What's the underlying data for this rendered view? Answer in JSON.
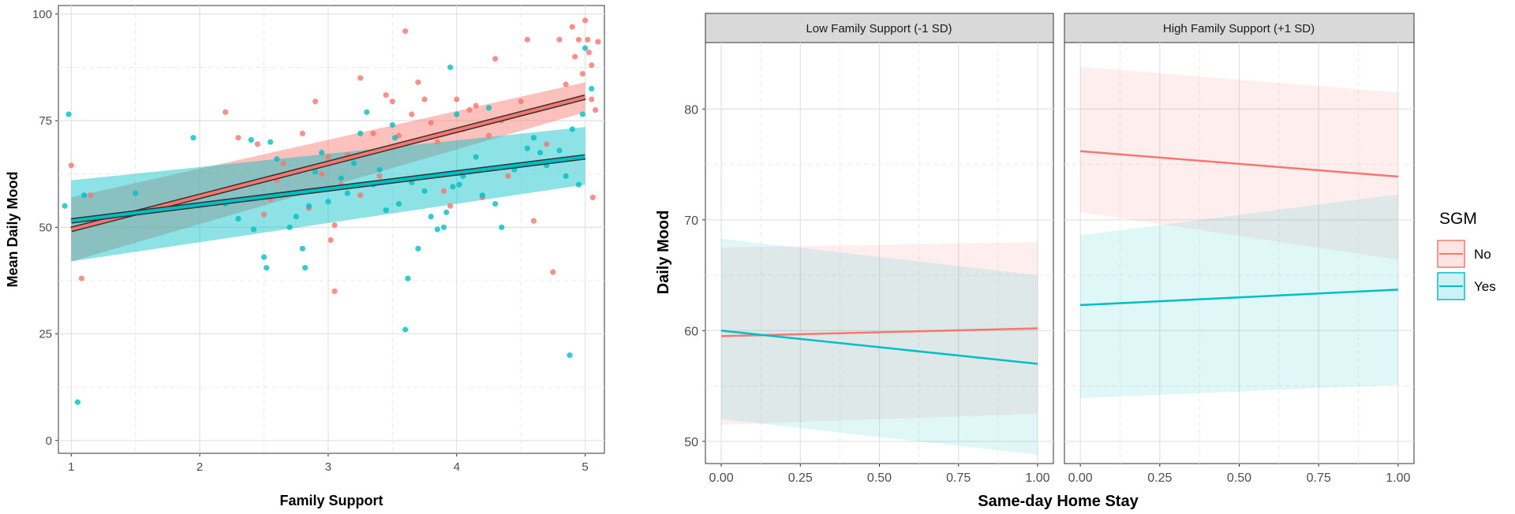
{
  "colors": {
    "no": "#F8766D",
    "yes": "#00BFC4"
  },
  "chart_data": [
    {
      "type": "scatter",
      "title": "",
      "xlabel": "Family Support",
      "ylabel": "Mean Daily Mood",
      "xlim": [
        0.9,
        5.15
      ],
      "ylim": [
        -3,
        102
      ],
      "xticks": [
        1,
        2,
        3,
        4,
        5
      ],
      "yticks": [
        0,
        25,
        50,
        75,
        100
      ],
      "grid": true,
      "legend": "none",
      "series": [
        {
          "group": "No",
          "color": "#F8766D",
          "points": [
            [
              1,
              64.5
            ],
            [
              1.08,
              38
            ],
            [
              1.15,
              57.5
            ],
            [
              2.2,
              77
            ],
            [
              2.3,
              71
            ],
            [
              2.45,
              69.5
            ],
            [
              2.5,
              53
            ],
            [
              2.55,
              56.5
            ],
            [
              2.6,
              61
            ],
            [
              2.65,
              65
            ],
            [
              2.75,
              58
            ],
            [
              2.8,
              72
            ],
            [
              2.85,
              54.5
            ],
            [
              2.9,
              79.5
            ],
            [
              2.95,
              62.5
            ],
            [
              3.0,
              66.5
            ],
            [
              3.02,
              47
            ],
            [
              3.05,
              50.5
            ],
            [
              3.05,
              35
            ],
            [
              3.1,
              60
            ],
            [
              3.15,
              67
            ],
            [
              3.25,
              57.5
            ],
            [
              3.25,
              85
            ],
            [
              3.35,
              72
            ],
            [
              3.4,
              62
            ],
            [
              3.45,
              81
            ],
            [
              3.5,
              79.5
            ],
            [
              3.55,
              71.5
            ],
            [
              3.6,
              96
            ],
            [
              3.65,
              76.5
            ],
            [
              3.7,
              84
            ],
            [
              3.75,
              80
            ],
            [
              3.8,
              74.5
            ],
            [
              3.85,
              70
            ],
            [
              3.9,
              58.5
            ],
            [
              3.95,
              55
            ],
            [
              4.0,
              80
            ],
            [
              4.05,
              73
            ],
            [
              4.1,
              77.5
            ],
            [
              4.15,
              78.5
            ],
            [
              4.2,
              57
            ],
            [
              4.25,
              71.5
            ],
            [
              4.3,
              89.5
            ],
            [
              4.35,
              75
            ],
            [
              4.4,
              62
            ],
            [
              4.5,
              79.5
            ],
            [
              4.55,
              94
            ],
            [
              4.6,
              51.5
            ],
            [
              4.7,
              69.5
            ],
            [
              4.75,
              39.5
            ],
            [
              4.8,
              94
            ],
            [
              4.85,
              83.5
            ],
            [
              4.9,
              97
            ],
            [
              4.92,
              90
            ],
            [
              4.95,
              94
            ],
            [
              4.98,
              86
            ],
            [
              5.0,
              98.5
            ],
            [
              5.02,
              94
            ],
            [
              5.03,
              91
            ],
            [
              5.05,
              88
            ],
            [
              5.05,
              80
            ],
            [
              5.06,
              57
            ],
            [
              5.08,
              77.5
            ],
            [
              5.1,
              93.5
            ]
          ]
        },
        {
          "group": "Yes",
          "color": "#00BFC4",
          "points": [
            [
              0.95,
              55
            ],
            [
              0.98,
              76.5
            ],
            [
              1.05,
              9
            ],
            [
              1.1,
              57.5
            ],
            [
              1.5,
              58
            ],
            [
              1.95,
              71
            ],
            [
              2.2,
              55.5
            ],
            [
              2.3,
              52
            ],
            [
              2.4,
              70.5
            ],
            [
              2.42,
              49.5
            ],
            [
              2.5,
              43
            ],
            [
              2.52,
              40.5
            ],
            [
              2.55,
              70
            ],
            [
              2.6,
              66
            ],
            [
              2.7,
              50
            ],
            [
              2.75,
              52.5
            ],
            [
              2.8,
              45
            ],
            [
              2.82,
              40.5
            ],
            [
              2.85,
              55
            ],
            [
              2.9,
              63
            ],
            [
              2.95,
              67.5
            ],
            [
              3.0,
              56
            ],
            [
              3.1,
              61.5
            ],
            [
              3.15,
              58
            ],
            [
              3.2,
              65
            ],
            [
              3.25,
              72
            ],
            [
              3.3,
              77
            ],
            [
              3.35,
              60
            ],
            [
              3.4,
              63.5
            ],
            [
              3.45,
              54
            ],
            [
              3.5,
              74
            ],
            [
              3.52,
              71
            ],
            [
              3.55,
              55.5
            ],
            [
              3.6,
              26
            ],
            [
              3.62,
              38
            ],
            [
              3.65,
              60.5
            ],
            [
              3.7,
              45
            ],
            [
              3.75,
              58.5
            ],
            [
              3.8,
              52.5
            ],
            [
              3.85,
              49.5
            ],
            [
              3.9,
              50
            ],
            [
              3.92,
              53.5
            ],
            [
              3.95,
              87.5
            ],
            [
              3.97,
              59.5
            ],
            [
              4.0,
              76.5
            ],
            [
              4.02,
              60
            ],
            [
              4.05,
              62
            ],
            [
              4.1,
              63
            ],
            [
              4.15,
              66.5
            ],
            [
              4.2,
              57.5
            ],
            [
              4.25,
              78
            ],
            [
              4.3,
              55.5
            ],
            [
              4.35,
              50
            ],
            [
              4.45,
              63.5
            ],
            [
              4.55,
              68.5
            ],
            [
              4.6,
              71
            ],
            [
              4.65,
              67.5
            ],
            [
              4.7,
              64.5
            ],
            [
              4.8,
              68
            ],
            [
              4.85,
              62
            ],
            [
              4.88,
              20
            ],
            [
              4.9,
              73
            ],
            [
              4.95,
              60
            ],
            [
              4.98,
              76.5
            ],
            [
              5.0,
              92
            ],
            [
              5.05,
              82.5
            ]
          ]
        }
      ],
      "fits": [
        {
          "group": "No",
          "color": "#F8766D",
          "x": [
            1,
            5
          ],
          "y": [
            49.5,
            80.5
          ],
          "ci_lower": [
            41.5,
            77.5
          ],
          "ci_upper": [
            57.5,
            83.5
          ],
          "ci_band_lower": [
            42,
            77
          ],
          "ci_band_upper": [
            57,
            84
          ]
        },
        {
          "group": "Yes",
          "color": "#00BFC4",
          "x": [
            1,
            5
          ],
          "y": [
            51.5,
            66.5
          ],
          "ci_lower": [
            42,
            60
          ],
          "ci_upper": [
            61,
            73.5
          ],
          "ci_band_lower": [
            42,
            60
          ],
          "ci_band_upper": [
            61,
            73.5
          ]
        }
      ]
    },
    {
      "type": "line",
      "title": "",
      "xlabel": "Same-day Home Stay",
      "ylabel": "Daily Mood",
      "xlim": [
        -0.05,
        1.05
      ],
      "ylim": [
        48,
        86
      ],
      "xticks": [
        "0.00",
        "0.25",
        "0.50",
        "0.75",
        "1.00"
      ],
      "yticks": [
        50,
        60,
        70,
        80
      ],
      "grid": true,
      "legend": "right",
      "legend_title": "SGM",
      "legend_entries": [
        "No",
        "Yes"
      ],
      "facets": [
        {
          "label": "Low Family Support (-1 SD)",
          "series": [
            {
              "name": "No",
              "color": "#F8766D",
              "x": [
                0,
                1
              ],
              "y": [
                59.5,
                60.2
              ],
              "lower": [
                51.5,
                52.5
              ],
              "upper": [
                67.5,
                68
              ]
            },
            {
              "name": "Yes",
              "color": "#00BFC4",
              "x": [
                0,
                1
              ],
              "y": [
                60.0,
                57.0
              ],
              "lower": [
                52,
                48.8
              ],
              "upper": [
                68.3,
                65
              ]
            }
          ]
        },
        {
          "label": "High Family Support (+1 SD)",
          "series": [
            {
              "name": "No",
              "color": "#F8766D",
              "x": [
                0,
                1
              ],
              "y": [
                76.2,
                73.9
              ],
              "lower": [
                70.7,
                66.4
              ],
              "upper": [
                83.8,
                81.5
              ]
            },
            {
              "name": "Yes",
              "color": "#00BFC4",
              "x": [
                0,
                1
              ],
              "y": [
                62.3,
                63.7
              ],
              "lower": [
                53.9,
                55.1
              ],
              "upper": [
                68.6,
                72.3
              ]
            }
          ]
        }
      ]
    }
  ]
}
